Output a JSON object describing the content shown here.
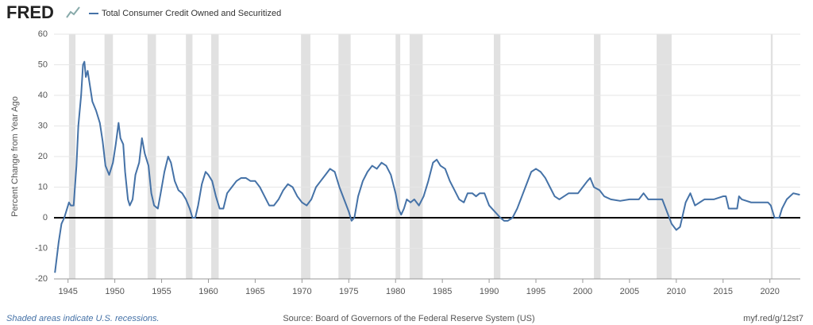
{
  "logo": "FRED",
  "chart_data": {
    "type": "line",
    "y_label": "Percent Change from Year Ago",
    "footer_note": "Shaded areas indicate U.S. recessions.",
    "source": "Source: Board of Governors of the Federal Reserve System (US)",
    "short_url": "myf.red/g/12st7",
    "x": [
      1943.6,
      1944.0,
      1944.3,
      1944.6,
      1944.9,
      1945.1,
      1945.3,
      1945.6,
      1945.9,
      1946.1,
      1946.4,
      1946.6,
      1946.75,
      1946.9,
      1947.1,
      1947.3,
      1947.6,
      1948.0,
      1948.4,
      1948.7,
      1949.0,
      1949.4,
      1949.8,
      1950.1,
      1950.4,
      1950.6,
      1950.9,
      1951.1,
      1951.4,
      1951.6,
      1951.9,
      1952.2,
      1952.6,
      1952.9,
      1953.2,
      1953.6,
      1953.9,
      1954.2,
      1954.6,
      1954.9,
      1955.3,
      1955.7,
      1956.0,
      1956.4,
      1956.8,
      1957.2,
      1957.6,
      1958.0,
      1958.3,
      1958.6,
      1958.9,
      1959.3,
      1959.7,
      1960.0,
      1960.4,
      1960.8,
      1961.2,
      1961.6,
      1962.0,
      1962.5,
      1963.0,
      1963.5,
      1964.0,
      1964.5,
      1965.0,
      1965.5,
      1966.0,
      1966.5,
      1967.0,
      1967.5,
      1968.0,
      1968.5,
      1969.0,
      1969.5,
      1970.0,
      1970.5,
      1971.0,
      1971.5,
      1972.0,
      1972.5,
      1973.0,
      1973.5,
      1974.0,
      1974.5,
      1975.0,
      1975.3,
      1975.6,
      1976.0,
      1976.5,
      1977.0,
      1977.5,
      1978.0,
      1978.5,
      1979.0,
      1979.5,
      1980.0,
      1980.3,
      1980.6,
      1980.9,
      1981.2,
      1981.6,
      1982.0,
      1982.5,
      1983.0,
      1983.5,
      1984.0,
      1984.4,
      1984.8,
      1985.3,
      1985.8,
      1986.3,
      1986.8,
      1987.3,
      1987.7,
      1988.2,
      1988.6,
      1989.0,
      1989.5,
      1990.0,
      1990.6,
      1991.2,
      1991.6,
      1992.0,
      1992.5,
      1993.0,
      1993.5,
      1994.0,
      1994.5,
      1995.0,
      1995.5,
      1996.0,
      1996.5,
      1997.0,
      1997.5,
      1998.0,
      1998.5,
      1999.0,
      1999.5,
      2000.0,
      2000.5,
      2000.8,
      2001.2,
      2001.8,
      2002.3,
      2003.0,
      2004.0,
      2005.0,
      2006.0,
      2006.5,
      2007.0,
      2007.5,
      2008.0,
      2008.5,
      2009.0,
      2009.5,
      2010.0,
      2010.4,
      2010.7,
      2011.0,
      2011.5,
      2012.0,
      2012.5,
      2013.0,
      2014.0,
      2015.0,
      2015.3,
      2015.6,
      2016.5,
      2016.7,
      2017.0,
      2018.0,
      2019.0,
      2019.8,
      2020.1,
      2020.5,
      2021.0,
      2021.3,
      2021.8,
      2022.5,
      2023.2
    ],
    "series": [
      {
        "name": "Total Consumer Credit Owned and Securitized",
        "color": "#4572a7",
        "values": [
          -18,
          -8,
          -2,
          0,
          3,
          5,
          4,
          4,
          17,
          30,
          40,
          50,
          51,
          46,
          48,
          44,
          38,
          35,
          31,
          25,
          17,
          14,
          18,
          24,
          31,
          26,
          24,
          15,
          6,
          4,
          6,
          14,
          18,
          26,
          21,
          17,
          8,
          4,
          3,
          8,
          15,
          20,
          18,
          12,
          9,
          8,
          6,
          3,
          0,
          0,
          4,
          11,
          15,
          14,
          12,
          7,
          3,
          3,
          8,
          10,
          12,
          13,
          13,
          12,
          12,
          10,
          7,
          4,
          4,
          6,
          9,
          11,
          10,
          7,
          5,
          4,
          6,
          10,
          12,
          14,
          16,
          15,
          10,
          6,
          2,
          -1,
          0,
          7,
          12,
          15,
          17,
          16,
          18,
          17,
          14,
          8,
          3,
          1,
          3,
          6,
          5,
          6,
          4,
          7,
          12,
          18,
          19,
          17,
          16,
          12,
          9,
          6,
          5,
          8,
          8,
          7,
          8,
          8,
          4,
          2,
          0,
          -1,
          -1,
          0,
          3,
          7,
          11,
          15,
          16,
          15,
          13,
          10,
          7,
          6,
          7,
          8,
          8,
          8,
          10,
          12,
          13,
          10,
          9,
          7,
          6,
          5.5,
          6,
          6,
          8,
          6,
          6,
          6,
          6,
          2,
          -2,
          -4,
          -3,
          1,
          5,
          8,
          4,
          5,
          6,
          6,
          7,
          7,
          3,
          3,
          7,
          6,
          5,
          5,
          5,
          4,
          0,
          0,
          3,
          6,
          8,
          7.5
        ]
      }
    ],
    "recessions": [
      [
        1945.1,
        1945.8
      ],
      [
        1948.9,
        1949.8
      ],
      [
        1953.5,
        1954.4
      ],
      [
        1957.6,
        1958.3
      ],
      [
        1960.3,
        1961.1
      ],
      [
        1969.9,
        1970.9
      ],
      [
        1973.9,
        1975.2
      ],
      [
        1980.0,
        1980.5
      ],
      [
        1981.5,
        1982.9
      ],
      [
        1990.5,
        1991.2
      ],
      [
        2001.2,
        2001.9
      ],
      [
        2007.9,
        2009.5
      ],
      [
        2020.1,
        2020.3
      ]
    ],
    "recession_color": "#e1e1e1",
    "baseline": 0,
    "xlim": [
      1943.5,
      2023.25
    ],
    "xticks": [
      1945,
      1950,
      1955,
      1960,
      1965,
      1970,
      1975,
      1980,
      1985,
      1990,
      1995,
      2000,
      2005,
      2010,
      2015,
      2020
    ],
    "ylim": [
      -20,
      60
    ],
    "yticks": [
      -20,
      -10,
      0,
      10,
      20,
      30,
      40,
      50,
      60
    ],
    "grid": true
  }
}
